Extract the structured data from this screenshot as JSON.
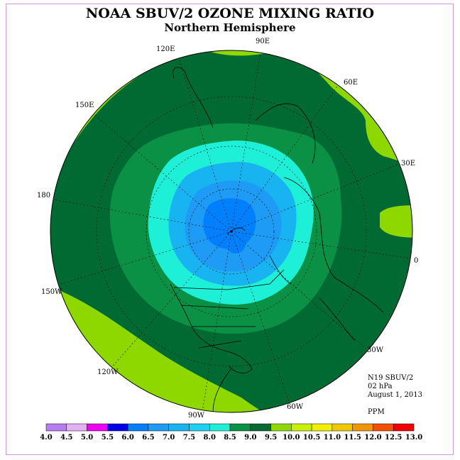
{
  "title": "NOAA SBUV/2 OZONE MIXING RATIO",
  "subtitle": "Northern Hemisphere",
  "longitude_labels": [
    "90E",
    "60E",
    "30E",
    "0",
    "30W",
    "60W",
    "90W",
    "120W",
    "150W",
    "180",
    "150E",
    "120E"
  ],
  "info": {
    "instrument": "N19 SBUV/2",
    "level": "02 hPa",
    "date": "August 1, 2013",
    "units": "PPM"
  },
  "colorbar": {
    "ticks": [
      "4.0",
      "4.5",
      "5.0",
      "5.5",
      "6.0",
      "6.5",
      "7.0",
      "7.5",
      "8.0",
      "8.5",
      "9.0",
      "9.5",
      "10.0",
      "10.5",
      "11.0",
      "11.5",
      "12.0",
      "12.5",
      "13.0"
    ],
    "colors": [
      "#b67cf0",
      "#e3b0f2",
      "#f000f0",
      "#0000e6",
      "#0080ff",
      "#1e9cf5",
      "#18b4f2",
      "#20d0f2",
      "#1ef0d8",
      "#0a9146",
      "#006a32",
      "#8ed800",
      "#c8f000",
      "#f0f000",
      "#f0c800",
      "#f09600",
      "#f05000",
      "#f00000",
      "#8a5a3a"
    ]
  }
}
